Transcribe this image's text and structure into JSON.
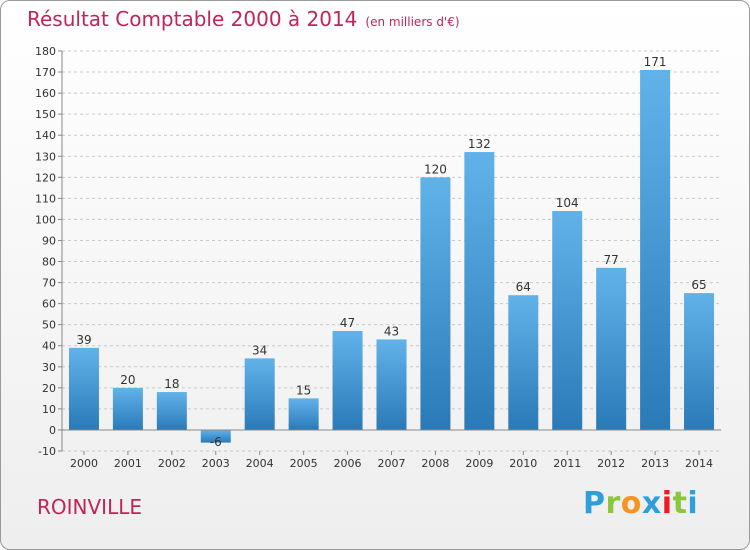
{
  "header": {
    "title": "Résultat Comptable 2000 à 2014",
    "subtitle": "(en milliers d'€)"
  },
  "footer": {
    "town": "ROINVILLE",
    "logo": "Proxiti"
  },
  "colors": {
    "title": "#c0245a",
    "bar_top": "#62b2ea",
    "bar_bottom": "#2a7ab8",
    "grid": "#c8c8c8",
    "axis_text": "#333333",
    "logo_P": "#2e9fd8",
    "logo_r": "#8cc63f",
    "logo_o": "#f7941d",
    "logo_x": "#2e9fd8",
    "logo_i1": "#ed1c24",
    "logo_t": "#8cc63f",
    "logo_i2": "#2e9fd8"
  },
  "chart_data": {
    "type": "bar",
    "categories": [
      "2000",
      "2001",
      "2002",
      "2003",
      "2004",
      "2005",
      "2006",
      "2007",
      "2008",
      "2009",
      "2010",
      "2011",
      "2012",
      "2013",
      "2014"
    ],
    "values": [
      39,
      20,
      18,
      -6,
      34,
      15,
      47,
      43,
      120,
      132,
      64,
      104,
      77,
      171,
      65
    ],
    "data_labels": [
      "39",
      "20",
      "18",
      "-6",
      "34",
      "15",
      "47",
      "43",
      "120",
      "132",
      "64",
      "104",
      "77",
      "171",
      "65"
    ],
    "ylim": [
      -10,
      180
    ],
    "yticks": [
      -10,
      0,
      10,
      20,
      30,
      40,
      50,
      60,
      70,
      80,
      90,
      100,
      110,
      120,
      130,
      140,
      150,
      160,
      170,
      180
    ],
    "grid": "horizontal dashed",
    "legend": "none"
  }
}
